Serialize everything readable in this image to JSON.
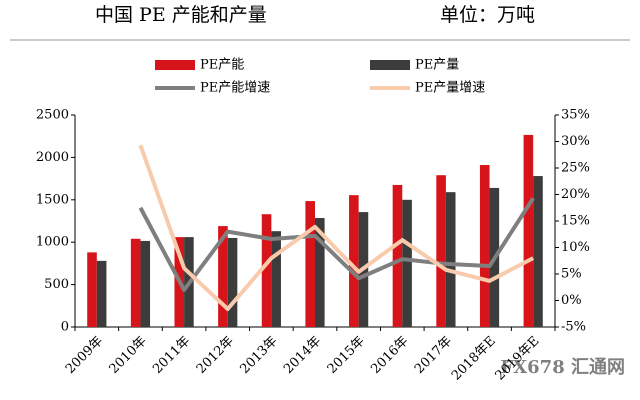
{
  "chart_data": {
    "type": "bar-line",
    "title": "中国 PE 产能和产量",
    "unit_label": "单位：万吨",
    "watermark": "FX678 汇通网",
    "categories": [
      "2009年",
      "2010年",
      "2011年",
      "2012年",
      "2013年",
      "2014年",
      "2015年",
      "2016年",
      "2017年",
      "2018年E",
      "2019年E"
    ],
    "series": [
      {
        "name": "PE产能",
        "color": "#d7141a",
        "kind": "bar",
        "values": [
          880,
          1040,
          1060,
          1190,
          1330,
          1485,
          1555,
          1675,
          1790,
          1910,
          2265
        ]
      },
      {
        "name": "PE产量",
        "color": "#3c3c3c",
        "kind": "bar",
        "values": [
          780,
          1015,
          1060,
          1050,
          1130,
          1285,
          1355,
          1500,
          1590,
          1640,
          1780
        ]
      },
      {
        "name": "PE产能增速",
        "color": "#7f7f7f",
        "kind": "line",
        "axis": "y2",
        "values": [
          null,
          17.5,
          2,
          13,
          11.6,
          12.2,
          4.2,
          7.8,
          6.9,
          6.5,
          19.3
        ]
      },
      {
        "name": "PE产量增速",
        "color": "#f8cbad",
        "kind": "line",
        "axis": "y2",
        "values": [
          null,
          29.3,
          6.1,
          -1.6,
          8,
          13.9,
          5.4,
          11.4,
          5.8,
          3.7,
          8
        ]
      }
    ],
    "ylim": [
      0,
      2500
    ],
    "yticks": [
      0,
      500,
      1000,
      1500,
      2000,
      2500
    ],
    "y2lim": [
      -5,
      35
    ],
    "y2ticks": [
      {
        "value": -5,
        "label": "-5%"
      },
      {
        "value": 0,
        "label": "0%"
      },
      {
        "value": 5,
        "label": "5%"
      },
      {
        "value": 10,
        "label": "10%"
      },
      {
        "value": 15,
        "label": "15%"
      },
      {
        "value": 20,
        "label": "20%"
      },
      {
        "value": 25,
        "label": "25%"
      },
      {
        "value": 30,
        "label": "30%"
      },
      {
        "value": 35,
        "label": "35%"
      }
    ],
    "grid": false,
    "legend": "top"
  }
}
